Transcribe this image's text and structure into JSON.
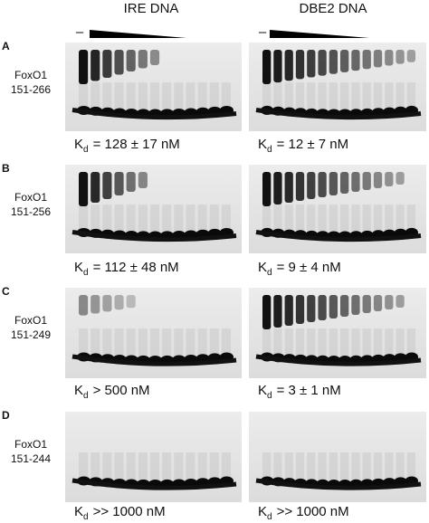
{
  "columns": [
    "IRE DNA",
    "DBE2 DNA"
  ],
  "titration_minus": [
    "–",
    "–"
  ],
  "panels": [
    {
      "letter": "A",
      "protein": "FoxO1",
      "range": "151-266",
      "kd": [
        {
          "symbol": "K",
          "subscript": "d",
          "text": "= 128 ± 17 nM"
        },
        {
          "symbol": "K",
          "subscript": "d",
          "text": "= 12 ± 7 nM"
        }
      ]
    },
    {
      "letter": "B",
      "protein": "FoxO1",
      "range": "151-256",
      "kd": [
        {
          "symbol": "K",
          "subscript": "d",
          "text": "= 112 ± 48 nM"
        },
        {
          "symbol": "K",
          "subscript": "d",
          "text": "= 9 ± 4 nM"
        }
      ]
    },
    {
      "letter": "C",
      "protein": "FoxO1",
      "range": "151-249",
      "kd": [
        {
          "symbol": "K",
          "subscript": "d",
          "text": "> 500 nM"
        },
        {
          "symbol": "K",
          "subscript": "d",
          "text": "= 3 ± 1 nM"
        }
      ]
    },
    {
      "letter": "D",
      "protein": "FoxO1",
      "range": "151-244",
      "kd": [
        {
          "symbol": "K",
          "subscript": "d",
          "text": ">> 1000 nM"
        },
        {
          "symbol": "K",
          "subscript": "d",
          "text": ">> 1000 nM"
        }
      ]
    }
  ]
}
